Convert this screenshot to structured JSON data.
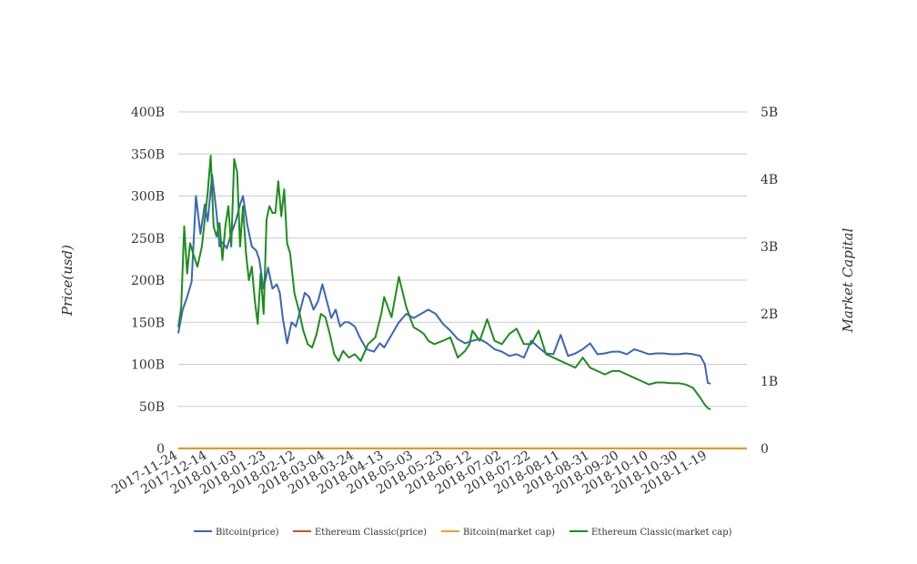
{
  "chart_data": {
    "type": "line",
    "title": "",
    "ylabel": "Price(usd)",
    "y2label": "Market Capital",
    "ylim": [
      0,
      400
    ],
    "y2lim": [
      0,
      5
    ],
    "yticks": [
      "0",
      "50B",
      "100B",
      "150B",
      "200B",
      "250B",
      "300B",
      "350B",
      "400B"
    ],
    "y2ticks": [
      "0",
      "1B",
      "2B",
      "3B",
      "4B",
      "5B"
    ],
    "xticks": [
      "2017-11-24",
      "2017-12-14",
      "2018-01-03",
      "2018-01-23",
      "2018-02-12",
      "2018-03-04",
      "2018-03-24",
      "2018-04-13",
      "2018-05-03",
      "2018-05-23",
      "2018-06-12",
      "2018-07-02",
      "2018-07-22",
      "2018-08-11",
      "2018-08-31",
      "2018-09-20",
      "2018-10-10",
      "2018-10-30",
      "2018-11-19"
    ],
    "grid": true,
    "legend_position": "bottom",
    "series": [
      {
        "name": "Bitcoin(price)",
        "axis": "left",
        "color": "#3a66b8",
        "x": [
          "2017-11-24",
          "2017-11-27",
          "2017-11-30",
          "2017-12-03",
          "2017-12-06",
          "2017-12-09",
          "2017-12-12",
          "2017-12-14",
          "2017-12-17",
          "2017-12-20",
          "2017-12-22",
          "2017-12-24",
          "2017-12-27",
          "2017-12-30",
          "2018-01-02",
          "2018-01-05",
          "2018-01-07",
          "2018-01-10",
          "2018-01-13",
          "2018-01-16",
          "2018-01-18",
          "2018-01-21",
          "2018-01-24",
          "2018-01-27",
          "2018-01-30",
          "2018-02-01",
          "2018-02-03",
          "2018-02-06",
          "2018-02-09",
          "2018-02-12",
          "2018-02-15",
          "2018-02-18",
          "2018-02-21",
          "2018-02-24",
          "2018-02-27",
          "2018-03-02",
          "2018-03-05",
          "2018-03-08",
          "2018-03-11",
          "2018-03-14",
          "2018-03-17",
          "2018-03-20",
          "2018-03-24",
          "2018-03-28",
          "2018-04-01",
          "2018-04-06",
          "2018-04-10",
          "2018-04-13",
          "2018-04-18",
          "2018-04-23",
          "2018-04-28",
          "2018-05-03",
          "2018-05-08",
          "2018-05-13",
          "2018-05-18",
          "2018-05-23",
          "2018-05-28",
          "2018-06-02",
          "2018-06-07",
          "2018-06-12",
          "2018-06-17",
          "2018-06-22",
          "2018-06-27",
          "2018-07-02",
          "2018-07-07",
          "2018-07-12",
          "2018-07-17",
          "2018-07-22",
          "2018-07-27",
          "2018-08-01",
          "2018-08-06",
          "2018-08-11",
          "2018-08-16",
          "2018-08-21",
          "2018-08-26",
          "2018-08-31",
          "2018-09-05",
          "2018-09-10",
          "2018-09-15",
          "2018-09-20",
          "2018-09-25",
          "2018-09-30",
          "2018-10-05",
          "2018-10-10",
          "2018-10-15",
          "2018-10-20",
          "2018-10-25",
          "2018-10-30",
          "2018-11-04",
          "2018-11-09",
          "2018-11-14",
          "2018-11-17",
          "2018-11-19",
          "2018-11-21"
        ],
        "values": [
          137,
          165,
          180,
          198,
          300,
          255,
          290,
          270,
          325,
          280,
          240,
          245,
          238,
          255,
          270,
          290,
          300,
          265,
          240,
          235,
          225,
          190,
          215,
          190,
          195,
          185,
          155,
          125,
          150,
          145,
          165,
          185,
          180,
          165,
          175,
          195,
          175,
          155,
          165,
          145,
          150,
          150,
          145,
          130,
          118,
          115,
          125,
          120,
          135,
          150,
          160,
          155,
          160,
          165,
          160,
          148,
          140,
          130,
          125,
          128,
          130,
          125,
          118,
          115,
          110,
          112,
          108,
          128,
          120,
          113,
          112,
          135,
          110,
          113,
          118,
          125,
          112,
          113,
          115,
          115,
          112,
          118,
          115,
          112,
          113,
          113,
          112,
          112,
          113,
          112,
          110,
          100,
          78,
          77
        ]
      },
      {
        "name": "Ethereum Classic(price)",
        "axis": "left",
        "color": "#c5562a",
        "x": [
          "2017-11-24",
          "2018-11-21"
        ],
        "values": [
          0.02,
          0.01
        ]
      },
      {
        "name": "Bitcoin(market cap)",
        "axis": "left",
        "color": "#e8a32c",
        "x": [
          "2017-11-24",
          "2018-11-21"
        ],
        "values": [
          0.3,
          0.3
        ]
      },
      {
        "name": "Ethereum Classic(market cap)",
        "axis": "right",
        "color": "#1e8c1e",
        "x": [
          "2017-11-24",
          "2017-11-26",
          "2017-11-28",
          "2017-11-30",
          "2017-12-02",
          "2017-12-04",
          "2017-12-07",
          "2017-12-10",
          "2017-12-12",
          "2017-12-14",
          "2017-12-16",
          "2017-12-18",
          "2017-12-20",
          "2017-12-22",
          "2017-12-24",
          "2017-12-26",
          "2017-12-28",
          "2017-12-30",
          "2018-01-01",
          "2018-01-03",
          "2018-01-05",
          "2018-01-07",
          "2018-01-09",
          "2018-01-11",
          "2018-01-13",
          "2018-01-15",
          "2018-01-17",
          "2018-01-19",
          "2018-01-21",
          "2018-01-23",
          "2018-01-25",
          "2018-01-27",
          "2018-01-29",
          "2018-01-31",
          "2018-02-02",
          "2018-02-04",
          "2018-02-06",
          "2018-02-08",
          "2018-02-11",
          "2018-02-14",
          "2018-02-17",
          "2018-02-20",
          "2018-02-23",
          "2018-02-26",
          "2018-03-01",
          "2018-03-04",
          "2018-03-07",
          "2018-03-10",
          "2018-03-13",
          "2018-03-16",
          "2018-03-20",
          "2018-03-24",
          "2018-03-28",
          "2018-04-02",
          "2018-04-07",
          "2018-04-11",
          "2018-04-13",
          "2018-04-18",
          "2018-04-23",
          "2018-04-28",
          "2018-05-03",
          "2018-05-07",
          "2018-05-10",
          "2018-05-13",
          "2018-05-17",
          "2018-05-23",
          "2018-05-28",
          "2018-06-02",
          "2018-06-07",
          "2018-06-10",
          "2018-06-12",
          "2018-06-17",
          "2018-06-22",
          "2018-06-27",
          "2018-07-02",
          "2018-07-07",
          "2018-07-12",
          "2018-07-17",
          "2018-07-22",
          "2018-07-27",
          "2018-08-01",
          "2018-08-06",
          "2018-08-11",
          "2018-08-16",
          "2018-08-21",
          "2018-08-26",
          "2018-08-31",
          "2018-09-05",
          "2018-09-10",
          "2018-09-15",
          "2018-09-20",
          "2018-09-25",
          "2018-09-30",
          "2018-10-05",
          "2018-10-10",
          "2018-10-15",
          "2018-10-20",
          "2018-10-25",
          "2018-10-30",
          "2018-11-04",
          "2018-11-09",
          "2018-11-14",
          "2018-11-17",
          "2018-11-19",
          "2018-11-21"
        ],
        "values": [
          1.8,
          2.1,
          3.3,
          2.6,
          3.05,
          2.9,
          2.7,
          3.0,
          3.4,
          3.8,
          4.35,
          3.3,
          3.15,
          3.35,
          2.8,
          3.3,
          3.6,
          3.0,
          4.3,
          4.1,
          3.0,
          3.6,
          2.9,
          2.5,
          2.7,
          2.2,
          1.85,
          2.6,
          2.0,
          3.4,
          3.6,
          3.5,
          3.5,
          3.97,
          3.45,
          3.85,
          3.05,
          2.9,
          2.3,
          2.05,
          1.75,
          1.55,
          1.5,
          1.7,
          2.0,
          1.95,
          1.7,
          1.4,
          1.3,
          1.45,
          1.35,
          1.4,
          1.3,
          1.55,
          1.65,
          2.0,
          2.25,
          1.95,
          2.55,
          2.1,
          1.8,
          1.75,
          1.7,
          1.6,
          1.55,
          1.6,
          1.65,
          1.35,
          1.45,
          1.55,
          1.75,
          1.6,
          1.92,
          1.6,
          1.55,
          1.7,
          1.78,
          1.55,
          1.55,
          1.75,
          1.4,
          1.35,
          1.3,
          1.25,
          1.2,
          1.35,
          1.2,
          1.15,
          1.1,
          1.15,
          1.15,
          1.1,
          1.05,
          1.0,
          0.95,
          0.98,
          0.98,
          0.97,
          0.97,
          0.95,
          0.9,
          0.75,
          0.65,
          0.6,
          0.58
        ]
      }
    ]
  }
}
